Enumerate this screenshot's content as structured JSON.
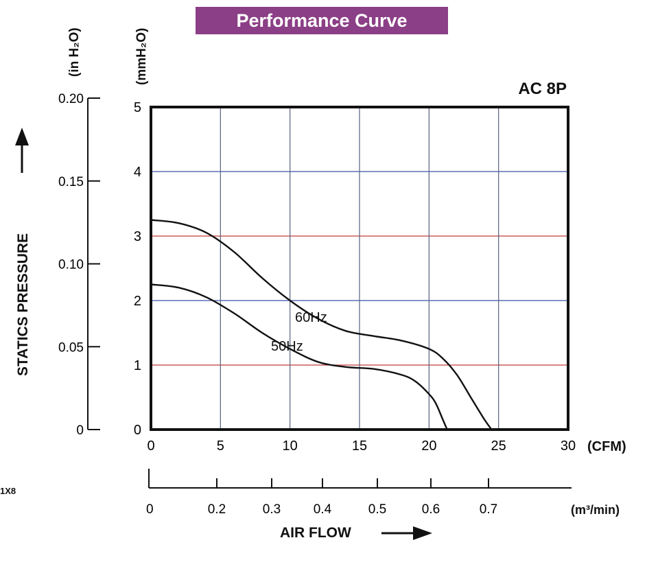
{
  "chart_data": {
    "type": "line",
    "title": "Performance Curve",
    "model": "AC 8P",
    "ylabel": "STATICS PRESSURE",
    "xlabel": "AIR FLOW",
    "x_unit": "(CFM)",
    "x_unit_secondary": "(m³/min)",
    "y_unit": "(mmH₂O)",
    "y_unit_secondary": "(in H₂O)",
    "xlim": [
      0,
      30
    ],
    "ylim": [
      0,
      5
    ],
    "grid": true,
    "x_ticks": [
      0,
      5,
      10,
      15,
      20,
      25,
      30
    ],
    "y_ticks": [
      0,
      1,
      2,
      3,
      4,
      5
    ],
    "x_ticks_secondary": [
      "0",
      "0.2",
      "0.3",
      "0.4",
      "0.5",
      "0.6",
      "0.7"
    ],
    "y_ticks_secondary": [
      "0",
      "0.05",
      "0.10",
      "0.15",
      "0.20"
    ],
    "series": [
      {
        "name": "60Hz",
        "x": [
          0,
          2,
          4,
          6,
          8,
          10,
          12,
          14,
          16,
          18,
          20,
          21,
          22,
          23,
          24,
          24.5
        ],
        "y": [
          3.25,
          3.2,
          3.05,
          2.75,
          2.35,
          2.0,
          1.72,
          1.53,
          1.45,
          1.38,
          1.25,
          1.1,
          0.85,
          0.5,
          0.15,
          0
        ]
      },
      {
        "name": "50Hz",
        "x": [
          0,
          2,
          4,
          6,
          8,
          10,
          12,
          14,
          16,
          18,
          19,
          20,
          20.5,
          21,
          21.3
        ],
        "y": [
          2.25,
          2.2,
          2.05,
          1.8,
          1.5,
          1.25,
          1.05,
          0.97,
          0.94,
          0.85,
          0.75,
          0.55,
          0.4,
          0.15,
          0
        ]
      }
    ]
  },
  "footer": {
    "corner_text": "1X8"
  }
}
